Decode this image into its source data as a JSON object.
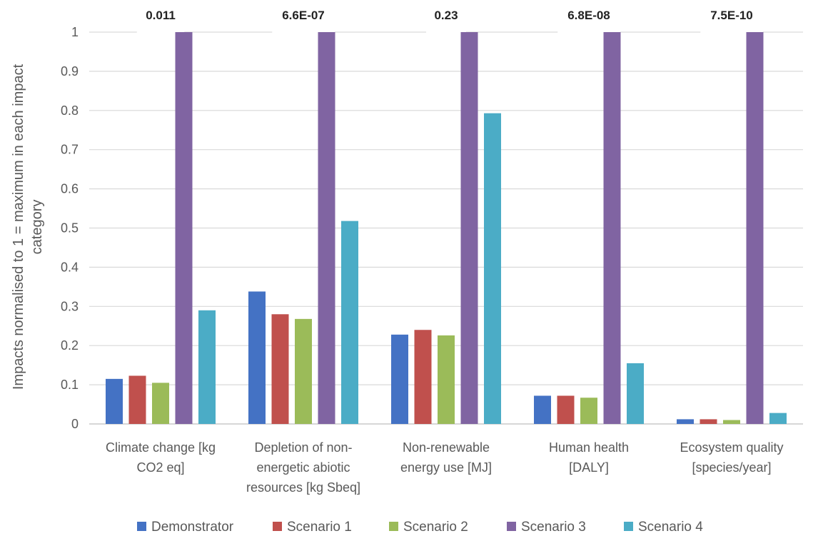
{
  "chart_data": {
    "type": "bar",
    "ylabel_lines": [
      "Impacts normalised to 1 = maximum in each impact",
      "category"
    ],
    "ylim": [
      0,
      1
    ],
    "yticks": [
      "0",
      "0.1",
      "0.2",
      "0.3",
      "0.4",
      "0.5",
      "0.6",
      "0.7",
      "0.8",
      "0.9",
      "1"
    ],
    "grid": true,
    "legend_position": "bottom",
    "categories": [
      [
        "Climate change [kg",
        "CO2 eq]"
      ],
      [
        "Depletion of non-",
        "energetic abiotic",
        "resources [kg Sbeq]"
      ],
      [
        "Non-renewable",
        "energy use [MJ]"
      ],
      [
        "Human health",
        "[DALY]"
      ],
      [
        "Ecosystem quality",
        "[species/year]"
      ]
    ],
    "annotations": [
      "0.011",
      "6.6E-07",
      "0.23",
      "6.8E-08",
      "7.5E-10"
    ],
    "series": [
      {
        "name": "Demonstrator",
        "color": "#4472c4",
        "values": [
          0.115,
          0.338,
          0.228,
          0.072,
          0.012
        ]
      },
      {
        "name": "Scenario 1",
        "color": "#c0504d",
        "values": [
          0.123,
          0.28,
          0.24,
          0.072,
          0.012
        ]
      },
      {
        "name": "Scenario 2",
        "color": "#9bbb59",
        "values": [
          0.105,
          0.268,
          0.226,
          0.067,
          0.01
        ]
      },
      {
        "name": "Scenario 3",
        "color": "#8064a2",
        "values": [
          1.0,
          1.0,
          1.0,
          1.0,
          1.0
        ]
      },
      {
        "name": "Scenario 4",
        "color": "#4bacc6",
        "values": [
          0.29,
          0.518,
          0.793,
          0.155,
          0.028
        ]
      }
    ]
  }
}
